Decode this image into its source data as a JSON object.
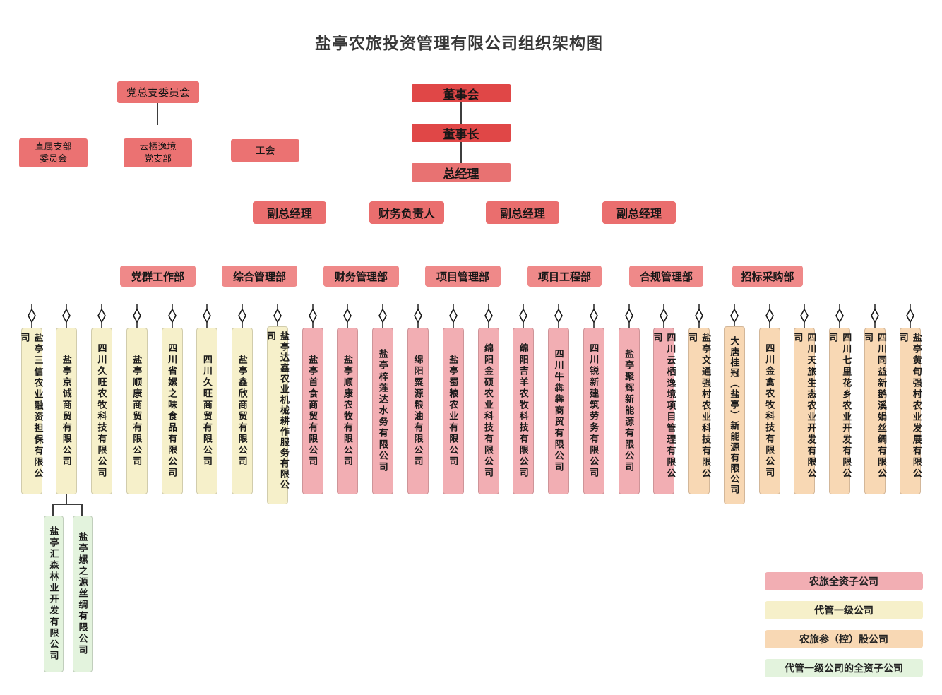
{
  "title": "盐亭农旅投资管理有限公司组织架构图",
  "party": {
    "root": "党总支委员会",
    "branch_left": "直属支部\n委员会",
    "branch_mid": "云栖逸境\n党支部",
    "union": "工会"
  },
  "spine": {
    "board": "董事会",
    "chairman": "董事长",
    "general_manager": "总经理"
  },
  "management": [
    {
      "label": "副总经理"
    },
    {
      "label": "财务负责人"
    },
    {
      "label": "副总经理"
    },
    {
      "label": "副总经理"
    }
  ],
  "departments": [
    {
      "label": "党群工作部"
    },
    {
      "label": "综合管理部"
    },
    {
      "label": "财务管理部"
    },
    {
      "label": "项目管理部"
    },
    {
      "label": "项目工程部"
    },
    {
      "label": "合规管理部"
    },
    {
      "label": "招标采购部"
    }
  ],
  "companies": [
    {
      "name": "盐亭三信农业融资担保有限公司",
      "type": "managed"
    },
    {
      "name": "盐亭京诚商贸有限公司",
      "type": "managed"
    },
    {
      "name": "四川久旺农牧科技有限公司",
      "type": "managed"
    },
    {
      "name": "盐亭顺康商贸有限公司",
      "type": "managed"
    },
    {
      "name": "四川省嫘之味食品有限公司",
      "type": "managed"
    },
    {
      "name": "四川久旺商贸有限公司",
      "type": "managed"
    },
    {
      "name": "盐亭鑫欣商贸有限公司",
      "type": "managed"
    },
    {
      "name": "盐亭达鑫农业机械耕作服务有限公司",
      "type": "managed"
    },
    {
      "name": "盐亭首食商贸有限公司",
      "type": "wholly"
    },
    {
      "name": "盐亭顺康农牧有限公司",
      "type": "wholly"
    },
    {
      "name": "盐亭梓莲达水务有限公司",
      "type": "wholly"
    },
    {
      "name": "绵阳粟源粮油有限公司",
      "type": "wholly"
    },
    {
      "name": "盐亭蜀粮农业有限公司",
      "type": "wholly"
    },
    {
      "name": "绵阳金硕农业科技有限公司",
      "type": "wholly"
    },
    {
      "name": "绵阳吉羊农牧科技有限公司",
      "type": "wholly"
    },
    {
      "name": "四川牛犇犇商贸有限公司",
      "type": "wholly"
    },
    {
      "name": "四川锐新建筑劳务有限公司",
      "type": "wholly"
    },
    {
      "name": "盐亭聚辉新能源有限公司",
      "type": "wholly"
    },
    {
      "name": "四川云栖逸境项目管理有限公司",
      "type": "wholly"
    },
    {
      "name": "盐亭文通强村农业科技有限公司",
      "type": "invested"
    },
    {
      "name": "大唐桂冠（盐亭）新能源有限公司",
      "type": "invested"
    },
    {
      "name": "四川金禽农牧科技有限公司",
      "type": "invested"
    },
    {
      "name": "四川天旅生态农业开发有限公司",
      "type": "invested"
    },
    {
      "name": "四川七里花乡农业开发有限公司",
      "type": "invested"
    },
    {
      "name": "四川同益新鹅溪娟丝绸有限公司",
      "type": "invested"
    },
    {
      "name": "盐亭黄甸强村农业发展有限公司",
      "type": "invested"
    }
  ],
  "subsidiaries": {
    "parent": "盐亭京诚商贸有限公司",
    "items": [
      {
        "name": "盐亭汇森林业开发有限公司",
        "type": "managed_sub"
      },
      {
        "name": "盐亭嫘之源丝绸有限公司",
        "type": "managed_sub"
      }
    ]
  },
  "legend": [
    {
      "label": "农旅全资子公司",
      "type": "wholly"
    },
    {
      "label": "代管一级公司",
      "type": "managed"
    },
    {
      "label": "农旅参（控）股公司",
      "type": "invested"
    },
    {
      "label": "代管一级公司的全资子公司",
      "type": "managed_sub"
    }
  ],
  "colors": {
    "wholly": "#f2aeb3",
    "managed": "#f6f0ca",
    "invested": "#f8d8b4",
    "managed_sub": "#e3f3dd",
    "spine_red": "#e04747",
    "gm_red": "#e87272",
    "manager_red": "#ea6e6e",
    "dept_red": "#ef8989",
    "party_red": "#eb7272",
    "line": "#3d3d3d"
  }
}
